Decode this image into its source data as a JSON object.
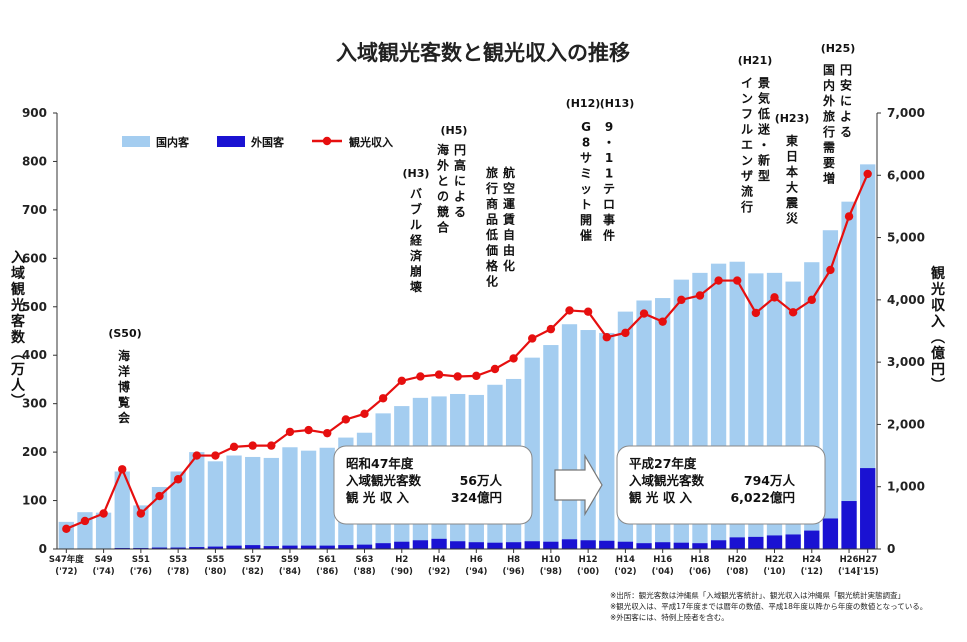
{
  "chart_data": {
    "type": "bar",
    "title": "入域観光客数と観光収入の推移",
    "ylabel": "入域観光客数（万人）",
    "y2label": "観光収入（億円）",
    "ylim": [
      0,
      900
    ],
    "y2lim": [
      0,
      7000
    ],
    "yticks": [
      "0",
      "100",
      "200",
      "300",
      "400",
      "500",
      "600",
      "700",
      "800",
      "900"
    ],
    "y2ticks": [
      "0",
      "1,000",
      "2,000",
      "3,000",
      "4,000",
      "5,000",
      "6,000",
      "7,000"
    ],
    "x_tick_labels": [
      {
        "index": 0,
        "top": "S47年度",
        "bottom": "('72)"
      },
      {
        "index": 2,
        "top": "S49",
        "bottom": "('74)"
      },
      {
        "index": 4,
        "top": "S51",
        "bottom": "('76)"
      },
      {
        "index": 6,
        "top": "S53",
        "bottom": "('78)"
      },
      {
        "index": 8,
        "top": "S55",
        "bottom": "('80)"
      },
      {
        "index": 10,
        "top": "S57",
        "bottom": "('82)"
      },
      {
        "index": 12,
        "top": "S59",
        "bottom": "('84)"
      },
      {
        "index": 14,
        "top": "S61",
        "bottom": "('86)"
      },
      {
        "index": 16,
        "top": "S63",
        "bottom": "('88)"
      },
      {
        "index": 18,
        "top": "H2",
        "bottom": "('90)"
      },
      {
        "index": 20,
        "top": "H4",
        "bottom": "('92)"
      },
      {
        "index": 22,
        "top": "H6",
        "bottom": "('94)"
      },
      {
        "index": 24,
        "top": "H8",
        "bottom": "('96)"
      },
      {
        "index": 26,
        "top": "H10",
        "bottom": "('98)"
      },
      {
        "index": 28,
        "top": "H12",
        "bottom": "('00)"
      },
      {
        "index": 30,
        "top": "H14",
        "bottom": "('02)"
      },
      {
        "index": 32,
        "top": "H16",
        "bottom": "('04)"
      },
      {
        "index": 34,
        "top": "H18",
        "bottom": "('06)"
      },
      {
        "index": 36,
        "top": "H20",
        "bottom": "('08)"
      },
      {
        "index": 38,
        "top": "H22",
        "bottom": "('10)"
      },
      {
        "index": 40,
        "top": "H24",
        "bottom": "('12)"
      },
      {
        "index": 42,
        "top": "H26",
        "bottom": "('14)"
      },
      {
        "index": 43,
        "top": "H27",
        "bottom": "('15)"
      }
    ],
    "series": [
      {
        "name": "国内客",
        "color": "#a4cdf0",
        "axis": "left",
        "kind": "bar",
        "stack_total": true,
        "values": [
          56,
          76,
          75,
          160,
          90,
          128,
          160,
          200,
          181,
          193,
          190,
          188,
          210,
          203,
          209,
          230,
          240,
          280,
          295,
          312,
          315,
          320,
          318,
          339,
          351,
          395,
          421,
          464,
          452,
          446,
          490,
          513,
          518,
          556,
          570,
          589,
          593,
          569,
          570,
          552,
          592,
          658,
          717,
          794
        ]
      },
      {
        "name": "外国客",
        "color": "#1a12d2",
        "axis": "left",
        "kind": "bar",
        "stack_total": false,
        "values": [
          0,
          1,
          1,
          2,
          2,
          3,
          3,
          4,
          5,
          7,
          8,
          6,
          7,
          7,
          7,
          8,
          9,
          12,
          15,
          18,
          21,
          16,
          14,
          13,
          14,
          16,
          15,
          20,
          18,
          17,
          15,
          12,
          14,
          13,
          12,
          18,
          24,
          25,
          28,
          30,
          38,
          63,
          99,
          167
        ]
      },
      {
        "name": "観光収入",
        "color": "#e60f0f",
        "axis": "right",
        "kind": "line",
        "values": [
          324,
          450,
          570,
          1280,
          570,
          850,
          1120,
          1500,
          1500,
          1640,
          1660,
          1660,
          1880,
          1910,
          1860,
          2080,
          2170,
          2420,
          2700,
          2770,
          2800,
          2770,
          2780,
          2890,
          3060,
          3380,
          3530,
          3830,
          3810,
          3400,
          3470,
          3780,
          3650,
          4000,
          4070,
          4310,
          4310,
          3790,
          4040,
          3800,
          4000,
          4480,
          5340,
          6022
        ]
      }
    ],
    "legend_position": "top-left",
    "grid": false,
    "annotations": {
      "s50_era": "(S50)",
      "s50_text": "海洋博覧会",
      "h3_era": "(H3)",
      "h3_text": "バブル経済崩壊",
      "h5_era": "(H5)",
      "h5_col1": "円高による",
      "h5_col2": "海外との競合",
      "h5b_col1": "航空運賃自由化",
      "h5b_col2": "旅行商品低価格化",
      "h12_era": "(H12)",
      "h12_text": "G8サミット開催",
      "h13_era": "(H13)",
      "h13_text": "9・11テロ事件",
      "h21_era": "(H21)",
      "h21_col1": "景気低迷・新型",
      "h21_col2": "インフルエンザ流行",
      "h23_era": "(H23)",
      "h23_text": "東日本大震災",
      "h25_era": "(H25)",
      "h25_col1": "円安による",
      "h25_col2": "国内外旅行需要増"
    },
    "box_left": {
      "title": "昭和47年度",
      "row1_label": "入域観光客数",
      "row1_value": "56万人",
      "row2_label": "観 光 収 入",
      "row2_value": "324億円"
    },
    "box_right": {
      "title": "平成27年度",
      "row1_label": "入域観光客数",
      "row1_value": "794万人",
      "row2_label": "観 光 収 入",
      "row2_value": "6,022億円"
    },
    "notes": [
      "※出所：観光客数は沖縄県「入域観光客統計」、観光収入は沖縄県「観光統計実態調査」",
      "※観光収入は、平成17年度までは暦年の数値、平成18年度以降から年度の数値となっている。",
      "※外国客には、特例上陸者を含む。"
    ]
  }
}
